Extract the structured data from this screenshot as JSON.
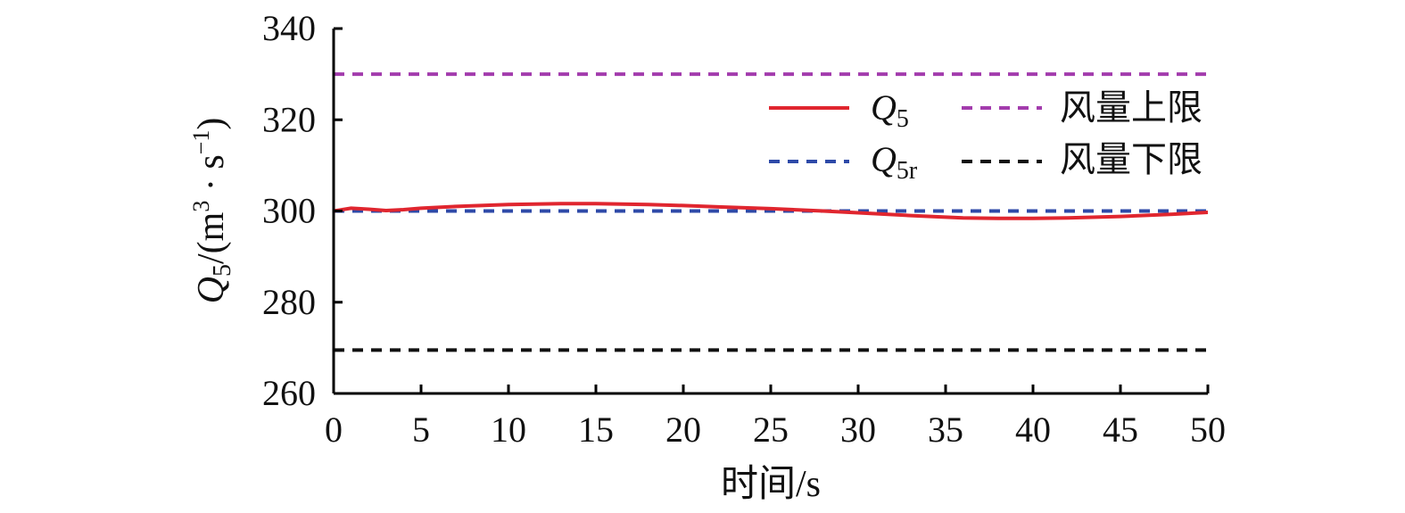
{
  "chart_data": {
    "type": "line",
    "xlabel": "时间/s",
    "ylabel": {
      "var": "Q",
      "sub": "5",
      "rest_a": "/(m",
      "sup": "3",
      "rest_b": " · s",
      "sup2": "−1",
      "rest_c": ")"
    },
    "xlim": [
      0,
      50
    ],
    "ylim": [
      260,
      340
    ],
    "x_ticks": [
      0,
      5,
      10,
      15,
      20,
      25,
      30,
      35,
      40,
      45,
      50
    ],
    "y_ticks": [
      260,
      280,
      300,
      320,
      340
    ],
    "grid": false,
    "legend_position": "top-right",
    "series": [
      {
        "name": "Q5",
        "label_var": "Q",
        "label_sub": "5",
        "color": "#e0262f",
        "style": "solid",
        "x": [
          0,
          1,
          2,
          3,
          4,
          5,
          7,
          10,
          13,
          15,
          18,
          20,
          22,
          25,
          28,
          30,
          33,
          36,
          38,
          40,
          42,
          45,
          48,
          50
        ],
        "y": [
          300.0,
          300.6,
          300.4,
          300.1,
          300.3,
          300.6,
          301.0,
          301.4,
          301.6,
          301.6,
          301.4,
          301.2,
          300.9,
          300.5,
          300.0,
          299.6,
          299.0,
          298.5,
          298.4,
          298.4,
          298.5,
          298.8,
          299.3,
          299.7
        ]
      },
      {
        "name": "Q5r",
        "label_var": "Q",
        "label_sub": "5r",
        "color": "#2e4aa8",
        "style": "dashed",
        "x": [
          0,
          50
        ],
        "y": [
          300,
          300
        ]
      },
      {
        "name": "风量上限",
        "label_text": "风量上限",
        "color": "#a33cad",
        "style": "dashed",
        "x": [
          0,
          50
        ],
        "y": [
          330,
          330
        ]
      },
      {
        "name": "风量下限",
        "label_text": "风量下限",
        "color": "#111111",
        "style": "dashed",
        "x": [
          0,
          50
        ],
        "y": [
          269.5,
          269.5
        ]
      }
    ]
  }
}
